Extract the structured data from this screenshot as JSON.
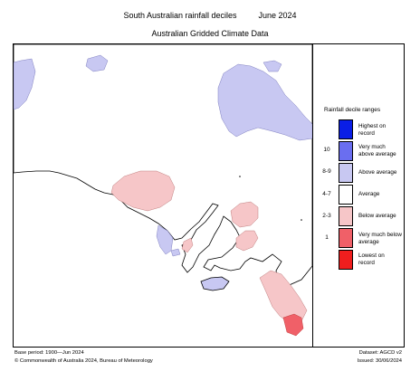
{
  "header": {
    "title": "South Australian rainfall deciles",
    "period": "June 2024",
    "subtitle": "Australian Gridded Climate Data"
  },
  "legend": {
    "title": "Rainfall decile ranges",
    "items": [
      {
        "range": "",
        "label": "Highest on record",
        "color": "#0a1ee6"
      },
      {
        "range": "10",
        "label": "Very much above average",
        "color": "#6a6ef0"
      },
      {
        "range": "8-9",
        "label": "Above average",
        "color": "#c8c8f2"
      },
      {
        "range": "4-7",
        "label": "Average",
        "color": "#ffffff"
      },
      {
        "range": "2-3",
        "label": "Below average",
        "color": "#f6c6c8"
      },
      {
        "range": "1",
        "label": "Very much below average",
        "color": "#f06068"
      },
      {
        "range": "",
        "label": "Lowest on record",
        "color": "#f01e1e"
      }
    ]
  },
  "footer": {
    "base_period": "Base period: 1900—Jun 2024",
    "dataset": "Dataset: AGCD v2",
    "copyright": "© Commonwealth of Australia 2024, Bureau of Meteorology",
    "issued": "Issued: 30/06/2024"
  }
}
